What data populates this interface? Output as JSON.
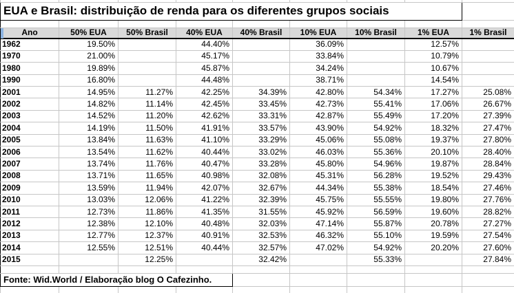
{
  "sheet": {
    "title": "EUA e Brasil: distribuição de renda para os diferentes grupos sociais",
    "source_note": "Fonte: Wid.World / Elaboração blog O Cafezinho.",
    "columns": [
      "Ano",
      "50% EUA",
      "50% Brasil",
      "40% EUA",
      "40% Brasil",
      "10% EUA",
      "10% Brasil",
      "1% EUA",
      "1% Brasil"
    ],
    "rows": [
      [
        "1962",
        "19.50%",
        "",
        "44.40%",
        "",
        "36.09%",
        "",
        "12.57%",
        ""
      ],
      [
        "1970",
        "21.00%",
        "",
        "45.17%",
        "",
        "33.84%",
        "",
        "10.79%",
        ""
      ],
      [
        "1980",
        "19.89%",
        "",
        "45.87%",
        "",
        "34.24%",
        "",
        "10.67%",
        ""
      ],
      [
        "1990",
        "16.80%",
        "",
        "44.48%",
        "",
        "38.71%",
        "",
        "14.54%",
        ""
      ],
      [
        "2001",
        "14.95%",
        "11.27%",
        "42.25%",
        "34.39%",
        "42.80%",
        "54.34%",
        "17.27%",
        "25.08%"
      ],
      [
        "2002",
        "14.82%",
        "11.14%",
        "42.45%",
        "33.45%",
        "42.73%",
        "55.41%",
        "17.06%",
        "26.67%"
      ],
      [
        "2003",
        "14.52%",
        "11.20%",
        "42.62%",
        "33.31%",
        "42.87%",
        "55.49%",
        "17.20%",
        "27.39%"
      ],
      [
        "2004",
        "14.19%",
        "11.50%",
        "41.91%",
        "33.57%",
        "43.90%",
        "54.92%",
        "18.32%",
        "27.47%"
      ],
      [
        "2005",
        "13.84%",
        "11.63%",
        "41.10%",
        "33.29%",
        "45.06%",
        "55.08%",
        "19.37%",
        "27.80%"
      ],
      [
        "2006",
        "13.54%",
        "11.62%",
        "40.44%",
        "33.02%",
        "46.03%",
        "55.36%",
        "20.10%",
        "28.40%"
      ],
      [
        "2007",
        "13.74%",
        "11.76%",
        "40.47%",
        "33.28%",
        "45.80%",
        "54.96%",
        "19.87%",
        "28.84%"
      ],
      [
        "2008",
        "13.71%",
        "11.65%",
        "40.98%",
        "32.08%",
        "45.31%",
        "56.28%",
        "19.52%",
        "29.43%"
      ],
      [
        "2009",
        "13.59%",
        "11.94%",
        "42.07%",
        "32.67%",
        "44.34%",
        "55.38%",
        "18.54%",
        "27.46%"
      ],
      [
        "2010",
        "13.03%",
        "12.06%",
        "41.22%",
        "32.39%",
        "45.75%",
        "55.55%",
        "19.80%",
        "27.76%"
      ],
      [
        "2011",
        "12.73%",
        "11.86%",
        "41.35%",
        "31.55%",
        "45.92%",
        "56.59%",
        "19.60%",
        "28.82%"
      ],
      [
        "2012",
        "12.38%",
        "12.10%",
        "40.48%",
        "32.03%",
        "47.14%",
        "55.87%",
        "20.78%",
        "27.27%"
      ],
      [
        "2013",
        "12.77%",
        "12.37%",
        "40.91%",
        "32.53%",
        "46.32%",
        "55.10%",
        "19.59%",
        "27.54%"
      ],
      [
        "2014",
        "12.55%",
        "12.51%",
        "40.44%",
        "32.57%",
        "47.02%",
        "54.92%",
        "20.20%",
        "27.60%"
      ],
      [
        "2015",
        "",
        "12.25%",
        "",
        "32.42%",
        "",
        "55.33%",
        "",
        "27.84%"
      ]
    ],
    "colors": {
      "header_bg": "#d9d9d9",
      "gridline": "#c6c6c6",
      "border": "#000000",
      "selection_marker": "#8db4e2",
      "text": "#000000",
      "background": "#ffffff"
    }
  }
}
